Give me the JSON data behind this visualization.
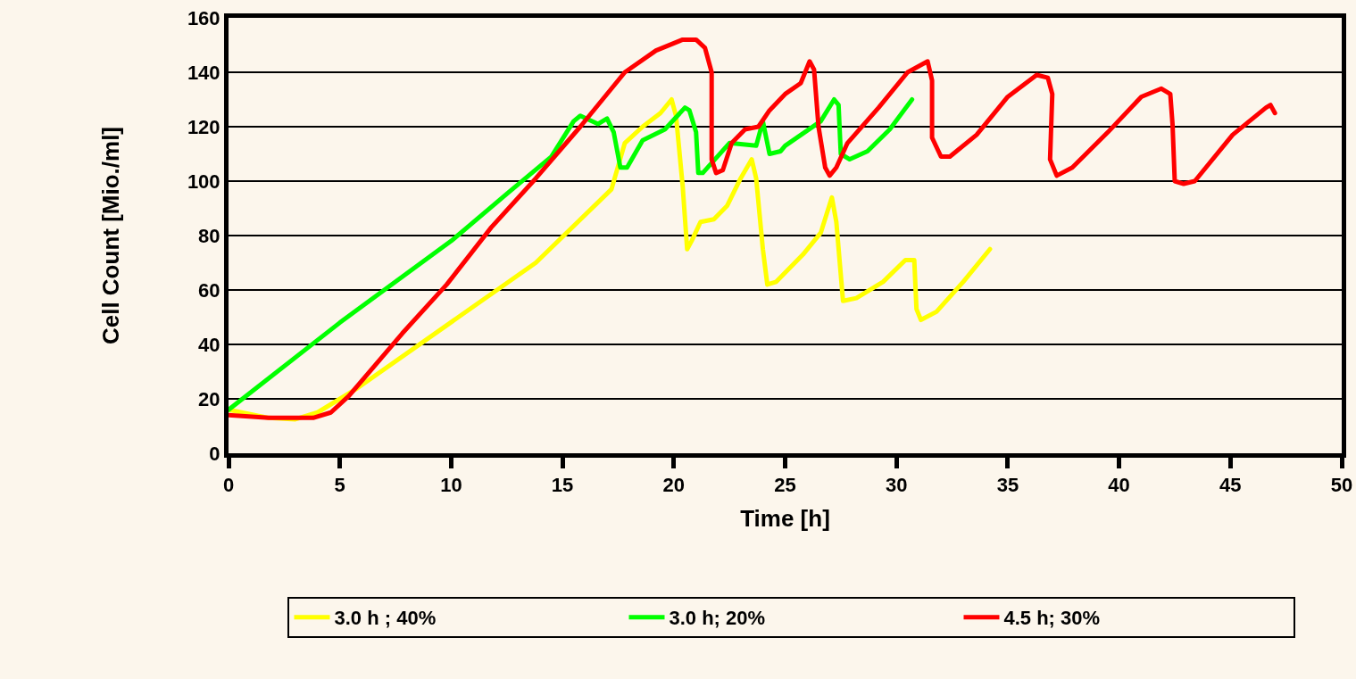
{
  "chart_data": {
    "type": "line",
    "xlabel": "Time [h]",
    "ylabel": "Cell Count [Mio./ml]",
    "xlim": [
      0,
      50
    ],
    "xticks": [
      0,
      5,
      10,
      15,
      20,
      25,
      30,
      35,
      40,
      45,
      50
    ],
    "ylim": [
      0,
      160
    ],
    "yticks": [
      0,
      20,
      40,
      60,
      80,
      100,
      120,
      140,
      160
    ],
    "grid": "y",
    "legend": "bottom",
    "marker": "none",
    "line_style": "solid",
    "series": [
      {
        "name": "3.0 h ; 40%",
        "color": "#ffff00",
        "x": [
          0,
          1.8,
          3,
          4,
          5.8,
          9.8,
          13.8,
          17.2,
          17.8,
          18.6,
          19.4,
          19.9,
          20.1,
          20.4,
          20.6,
          20.8,
          21.2,
          21.8,
          22.4,
          23,
          23.5,
          23.7,
          24,
          24.2,
          24.6,
          25.8,
          26.6,
          27.1,
          27.3,
          27.6,
          28.2,
          29.4,
          30.4,
          30.8,
          30.9,
          31.1,
          31.8,
          33,
          34.2
        ],
        "values": [
          16,
          13,
          12.5,
          15,
          24,
          47,
          70,
          97,
          114,
          120,
          125,
          130,
          124,
          98,
          75,
          78,
          85,
          86,
          91,
          101,
          108,
          101,
          75,
          62,
          63,
          73,
          81,
          94,
          85,
          56,
          57,
          63,
          71,
          71,
          53,
          49,
          52,
          63,
          75
        ]
      },
      {
        "name": "3.0 h; 20%",
        "color": "#00ff00",
        "x": [
          0,
          5,
          10,
          12.6,
          14.5,
          15.5,
          15.8,
          16.6,
          17,
          17.3,
          17.6,
          17.9,
          18.6,
          19.6,
          20.5,
          20.7,
          21,
          21.1,
          21.3,
          22.5,
          23.7,
          24,
          24.3,
          24.8,
          25,
          26.6,
          27.2,
          27.4,
          27.5,
          27.9,
          28.7,
          29.7,
          30.7
        ],
        "values": [
          16,
          48,
          78,
          96,
          109,
          122,
          124,
          121,
          123,
          118,
          105,
          105,
          115,
          119,
          127,
          126,
          118,
          103,
          103,
          114,
          113,
          122,
          110,
          111,
          113,
          122,
          130,
          128,
          110,
          108,
          111,
          119,
          130
        ]
      },
      {
        "name": "4.5 h; 30%",
        "color": "#ff0000",
        "x": [
          0,
          1.8,
          3.8,
          4.6,
          5.4,
          7.8,
          9.8,
          11.8,
          13.8,
          15.8,
          17.8,
          19.2,
          20.4,
          21,
          21.4,
          21.7,
          21.7,
          21.9,
          22.2,
          22.6,
          23.2,
          23.8,
          24.3,
          25,
          25.7,
          26.1,
          26.3,
          26.5,
          26.8,
          27,
          27.3,
          27.8,
          29.2,
          30.5,
          31.4,
          31.6,
          31.6,
          32,
          32.4,
          33.6,
          35,
          36.3,
          36.8,
          37,
          36.9,
          37.2,
          37.9,
          39.5,
          41,
          41.9,
          42.3,
          42.4,
          42.5,
          42.9,
          43.4,
          45.1,
          46.6,
          46.8,
          47
        ],
        "values": [
          14,
          13,
          13,
          15,
          21,
          44,
          62,
          83,
          101,
          120,
          140,
          148,
          152,
          152,
          149,
          140,
          108,
          103,
          104,
          114,
          119,
          120,
          126,
          132,
          136,
          144,
          141,
          120,
          105,
          102,
          105,
          114,
          127,
          140,
          144,
          137,
          116,
          109,
          109,
          117,
          131,
          139,
          138,
          132,
          108,
          102,
          105,
          118,
          131,
          134,
          132,
          121,
          100,
          99,
          100,
          117,
          127,
          128,
          125
        ]
      }
    ]
  }
}
